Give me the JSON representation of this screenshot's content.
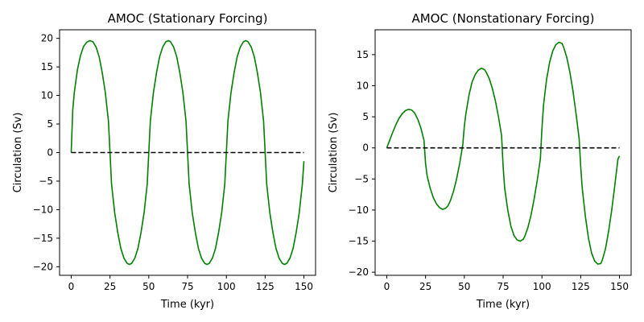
{
  "chart_data": [
    {
      "type": "line",
      "title": "AMOC (Stationary Forcing)",
      "xlabel": "Time (kyr)",
      "ylabel": "Circulation (Sv)",
      "xlim": [
        -7.5,
        157.5
      ],
      "ylim": [
        -21.5,
        21.5
      ],
      "xticks": [
        0,
        25,
        50,
        75,
        100,
        125,
        150
      ],
      "yticks": [
        -20,
        -15,
        -10,
        -5,
        0,
        5,
        10,
        15,
        20
      ],
      "grid": false,
      "series": [
        {
          "color": "#008000",
          "style": "solid",
          "x": [
            0,
            1,
            2,
            4,
            6,
            8,
            10,
            12,
            14,
            16,
            18,
            20,
            22,
            24,
            25,
            26,
            28,
            30,
            32,
            34,
            36,
            37.5,
            39,
            41,
            43,
            45,
            47,
            49,
            50,
            51,
            53,
            55,
            57,
            59,
            61,
            62.5,
            64,
            66,
            68,
            70,
            72,
            74,
            75,
            76,
            78,
            80,
            82,
            84,
            86,
            87.5,
            89,
            91,
            93,
            95,
            97,
            99,
            100,
            101,
            103,
            105,
            107,
            109,
            111,
            112.5,
            114,
            116,
            118,
            120,
            122,
            124,
            125,
            126,
            128,
            130,
            132,
            134,
            136,
            137.5,
            139,
            141,
            143,
            145,
            147,
            149,
            150
          ],
          "y": [
            0,
            7.5,
            10.5,
            14.5,
            17,
            18.6,
            19.3,
            19.6,
            19.4,
            18.5,
            16.8,
            14,
            10.5,
            5.5,
            0,
            -5.5,
            -10.5,
            -14,
            -16.8,
            -18.5,
            -19.4,
            -19.6,
            -19.4,
            -18.5,
            -16.8,
            -14,
            -10.5,
            -5.5,
            0,
            5.5,
            10.5,
            14,
            16.8,
            18.5,
            19.4,
            19.6,
            19.4,
            18.5,
            16.8,
            14,
            10.5,
            5.5,
            0,
            -5.5,
            -10.5,
            -14,
            -16.8,
            -18.5,
            -19.4,
            -19.6,
            -19.4,
            -18.5,
            -16.8,
            -14,
            -10.5,
            -5.5,
            0,
            5.5,
            10.5,
            14,
            16.8,
            18.5,
            19.4,
            19.6,
            19.4,
            18.5,
            16.8,
            14,
            10.5,
            5.5,
            0,
            -5.5,
            -10.5,
            -14,
            -16.8,
            -18.5,
            -19.4,
            -19.6,
            -19.4,
            -18.5,
            -16.8,
            -14,
            -10.5,
            -5.5,
            -1.5
          ]
        },
        {
          "color": "#000000",
          "style": "dashed",
          "x": [
            0,
            150
          ],
          "y": [
            0,
            0
          ]
        }
      ]
    },
    {
      "type": "line",
      "title": "AMOC (Nonstationary Forcing)",
      "xlabel": "Time (kyr)",
      "ylabel": "Circulation (Sv)",
      "xlim": [
        -7.5,
        157.5
      ],
      "ylim": [
        -20.5,
        19
      ],
      "xticks": [
        0,
        25,
        50,
        75,
        100,
        125,
        150
      ],
      "yticks": [
        -20,
        -15,
        -10,
        -5,
        0,
        5,
        10,
        15
      ],
      "grid": false,
      "series": [
        {
          "color": "#008000",
          "style": "solid",
          "x": [
            0,
            2,
            4,
            6,
            8,
            10,
            12,
            14,
            16,
            18,
            20,
            22,
            24,
            25,
            26,
            28,
            30,
            32,
            34,
            36,
            38,
            39.5,
            41,
            43,
            45,
            47,
            49,
            50,
            51,
            53,
            55,
            57,
            59,
            61,
            63,
            64,
            66,
            68,
            70,
            72,
            74,
            75,
            76,
            78,
            80,
            82,
            84,
            86,
            88,
            89,
            91,
            93,
            95,
            97,
            99,
            100,
            101,
            103,
            105,
            107,
            109,
            111,
            113,
            114,
            116,
            118,
            120,
            122,
            124,
            125,
            126,
            128,
            130,
            132,
            134,
            136,
            138,
            139,
            141,
            143,
            145,
            147,
            149,
            150
          ],
          "y": [
            0,
            1.3,
            2.6,
            3.8,
            4.8,
            5.5,
            6,
            6.2,
            6.1,
            5.6,
            4.6,
            3.2,
            1.2,
            -2.5,
            -4.5,
            -6.5,
            -8,
            -9,
            -9.6,
            -9.9,
            -9.7,
            -9.3,
            -8.5,
            -7,
            -5,
            -2.5,
            0.5,
            3.5,
            5.5,
            8.5,
            10.6,
            11.8,
            12.5,
            12.8,
            12.6,
            12.2,
            11.2,
            9.6,
            7.6,
            5,
            2,
            -3,
            -6.5,
            -10,
            -12.6,
            -14.1,
            -14.8,
            -15,
            -14.7,
            -14.2,
            -12.8,
            -10.8,
            -8.2,
            -5.2,
            -1.8,
            3,
            6.8,
            11,
            13.8,
            15.6,
            16.6,
            17,
            16.8,
            16.2,
            14.6,
            12.2,
            9.2,
            5.5,
            1.5,
            -3,
            -6.5,
            -11,
            -14.5,
            -16.9,
            -18.2,
            -18.7,
            -18.6,
            -18,
            -16.2,
            -13.4,
            -10,
            -6,
            -1.8,
            -1.3
          ]
        },
        {
          "color": "#000000",
          "style": "dashed",
          "x": [
            0,
            150
          ],
          "y": [
            0,
            0
          ]
        }
      ]
    }
  ]
}
